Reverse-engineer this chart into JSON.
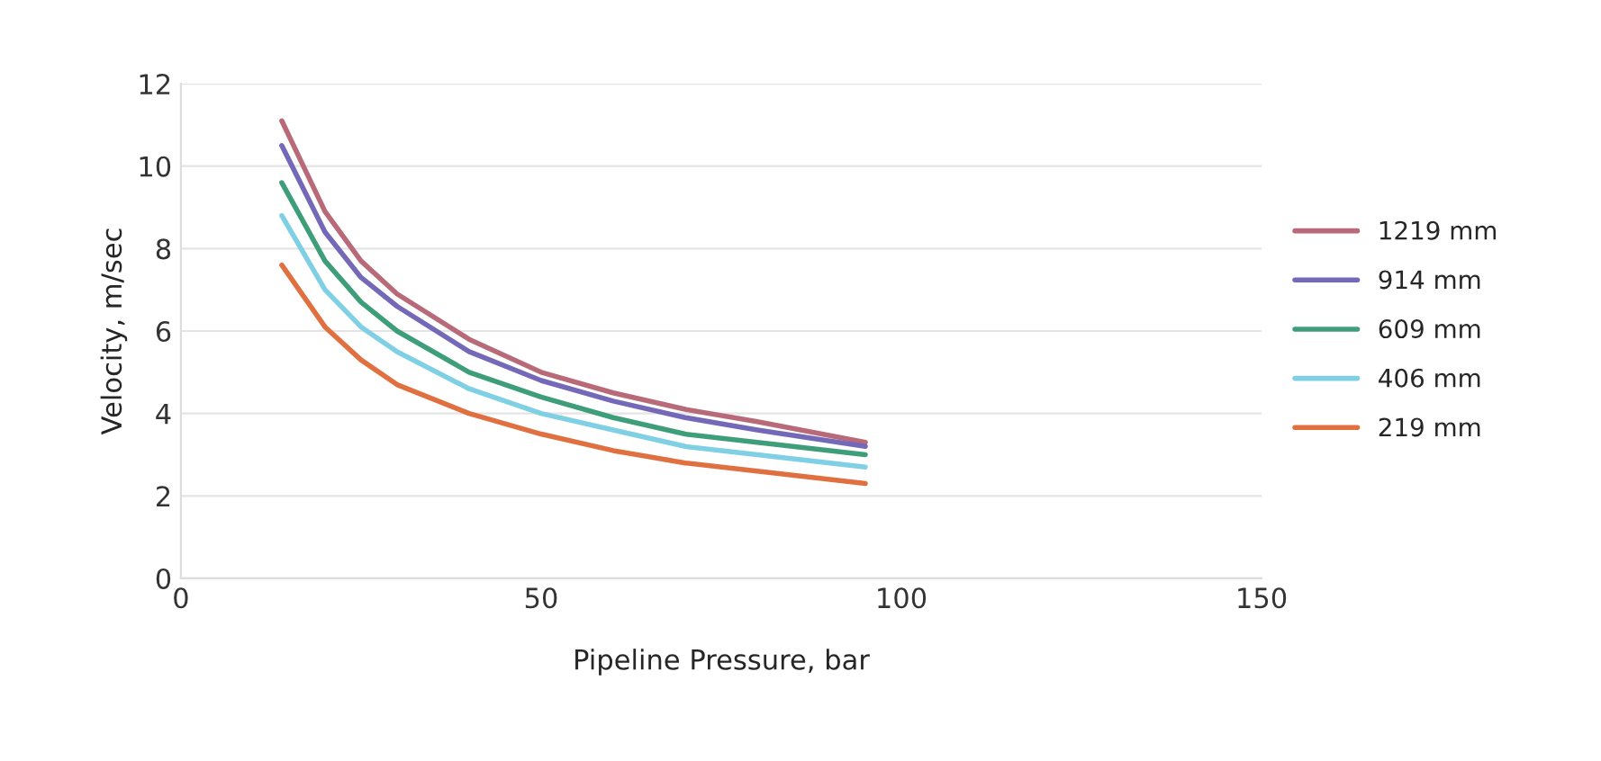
{
  "chart_data": {
    "type": "line",
    "xlabel": "Pipeline Pressure, bar",
    "ylabel": "Velocity, m/sec",
    "x": [
      14,
      20,
      25,
      30,
      40,
      50,
      60,
      70,
      80,
      95
    ],
    "series": [
      {
        "name": "1219 mm",
        "color": "#b86a78",
        "values": [
          11.1,
          8.9,
          7.7,
          6.9,
          5.8,
          5.0,
          4.5,
          4.1,
          3.8,
          3.3
        ]
      },
      {
        "name": "914 mm",
        "color": "#7468b8",
        "values": [
          10.5,
          8.4,
          7.3,
          6.6,
          5.5,
          4.8,
          4.3,
          3.9,
          3.6,
          3.2
        ]
      },
      {
        "name": "609 mm",
        "color": "#3f9e7a",
        "values": [
          9.6,
          7.7,
          6.7,
          6.0,
          5.0,
          4.4,
          3.9,
          3.5,
          3.3,
          3.0
        ]
      },
      {
        "name": "406 mm",
        "color": "#7fd0e4",
        "values": [
          8.8,
          7.0,
          6.1,
          5.5,
          4.6,
          4.0,
          3.6,
          3.2,
          3.0,
          2.7
        ]
      },
      {
        "name": "219 mm",
        "color": "#e0703f",
        "values": [
          7.6,
          6.1,
          5.3,
          4.7,
          4.0,
          3.5,
          3.1,
          2.8,
          2.6,
          2.3
        ]
      }
    ],
    "xlim": [
      0,
      150
    ],
    "xticks": [
      0,
      50,
      100,
      150
    ],
    "ylim": [
      0,
      12
    ],
    "yticks": [
      0,
      2,
      4,
      6,
      8,
      10,
      12
    ],
    "grid": "y",
    "legend": "right",
    "marker": "none",
    "line_style": "solid"
  }
}
